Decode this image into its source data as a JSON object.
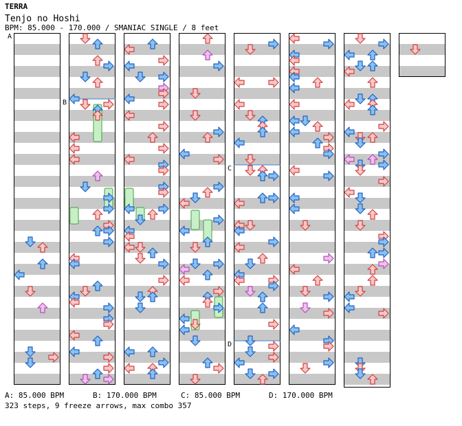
{
  "header": {
    "artist": "TERRA",
    "title": "Tenjo no Hoshi",
    "bpm_line": "BPM: 85.000 - 170.000 / SMANIAC SINGLE / 8 feet"
  },
  "markers": [
    {
      "label": "A",
      "column": 0,
      "measure": 0
    },
    {
      "label": "B",
      "column": 1,
      "measure": 1.5
    },
    {
      "label": "C",
      "column": 4,
      "measure": 3
    },
    {
      "label": "D",
      "column": 4,
      "measure": 7
    }
  ],
  "legend": [
    {
      "text": "A: 85.000 BPM"
    },
    {
      "text": "B: 170.000 BPM"
    },
    {
      "text": "C: 85.000 BPM"
    },
    {
      "text": "D: 170.000 BPM"
    }
  ],
  "summary": "323 steps, 9 freeze arrows, max combo 357",
  "colors": {
    "red_fill": "#f8c8c8",
    "red_stroke": "#d04040",
    "blue_fill": "#88c0f0",
    "blue_stroke": "#2060c0",
    "pink_fill": "#f0c0f0",
    "pink_stroke": "#b050b0",
    "freeze_fill": "#c8f0c8",
    "freeze_stroke": "#40a040",
    "stripe": "#c8c8c8",
    "bpm_line": "#4080d0"
  }
}
